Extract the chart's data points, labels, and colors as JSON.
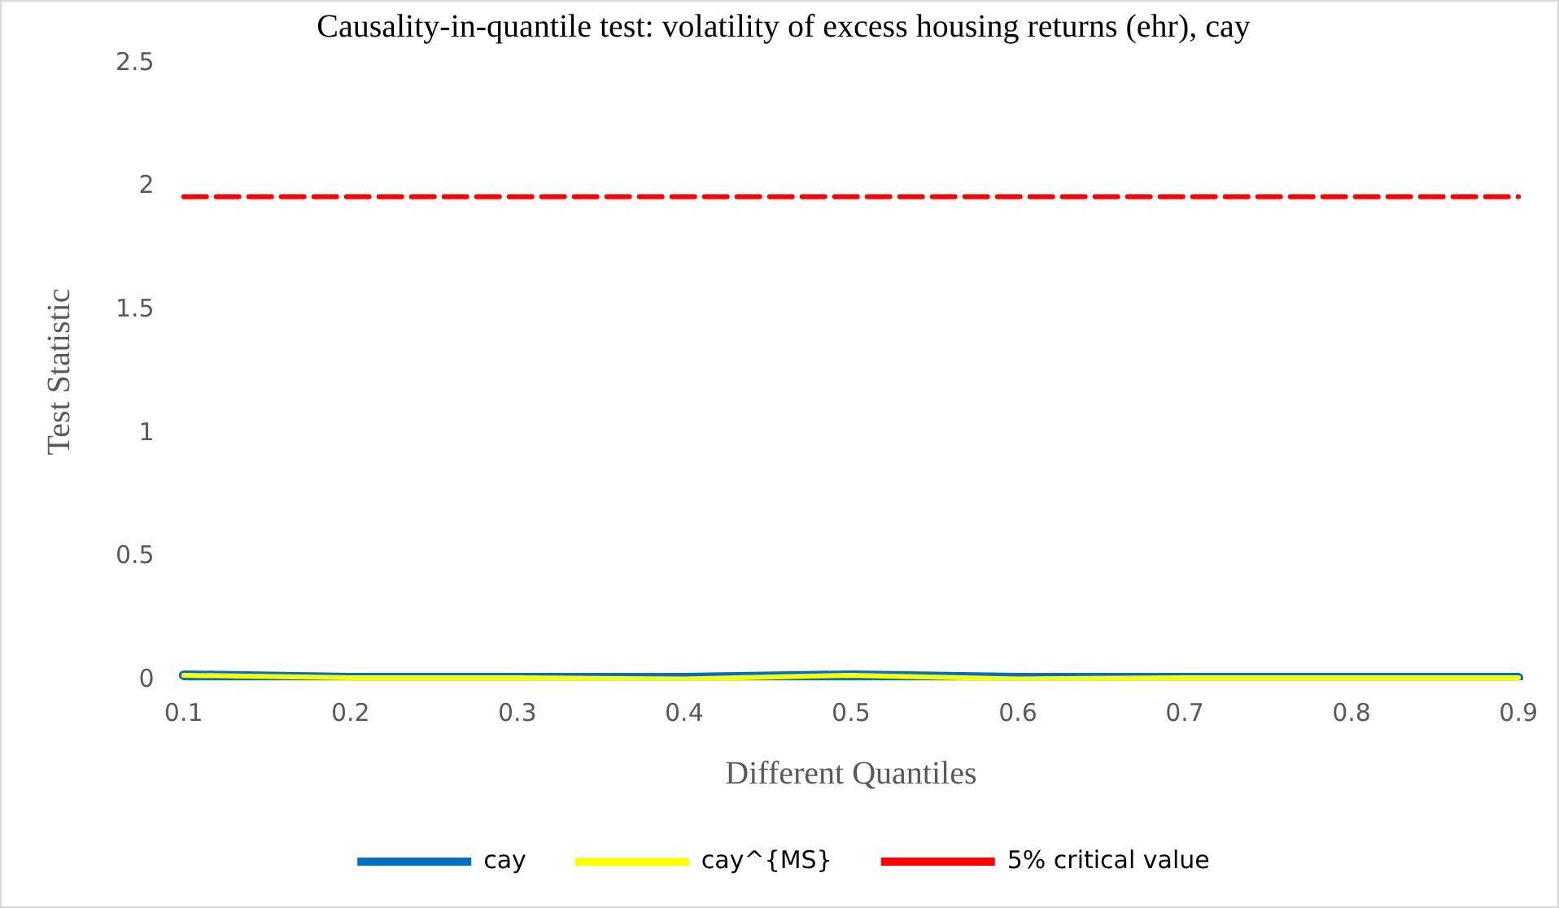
{
  "chart_data": {
    "type": "line",
    "title": "Causality-in-quantile test: volatility of excess housing returns (ehr), cay",
    "xlabel": "Different Quantiles",
    "ylabel": "Test Statistic",
    "categories": [
      "0.1",
      "0.2",
      "0.3",
      "0.4",
      "0.5",
      "0.6",
      "0.7",
      "0.8",
      "0.9"
    ],
    "series": [
      {
        "name": "cay",
        "color": "#0070c0",
        "values": [
          0.02,
          0.01,
          0.01,
          0.01,
          0.02,
          0.01,
          0.01,
          0.01,
          0.01
        ]
      },
      {
        "name": "cay^{MS}",
        "color": "#ffff00",
        "values": [
          0.02,
          0.01,
          0.01,
          0.005,
          0.02,
          0.005,
          0.01,
          0.01,
          0.01
        ]
      },
      {
        "name": "5% critical value",
        "color": "#ff0000",
        "line_style": "dashed",
        "values": [
          1.96,
          1.96,
          1.96,
          1.96,
          1.96,
          1.96,
          1.96,
          1.96,
          1.96
        ]
      }
    ],
    "ylim": [
      0,
      2.5
    ],
    "yticks": [
      0,
      0.5,
      1,
      1.5,
      2,
      2.5
    ],
    "grid": false,
    "legend": "bottom",
    "marker": "none"
  }
}
